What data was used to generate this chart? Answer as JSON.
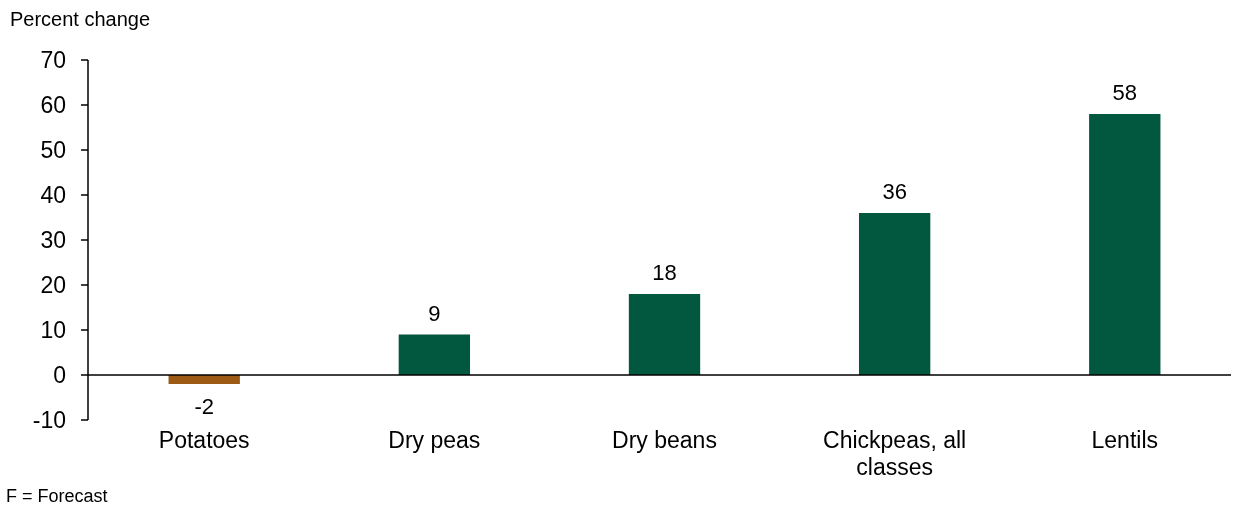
{
  "chart_data": {
    "type": "bar",
    "ylabel": "Percent change",
    "categories": [
      "Potatoes",
      "Dry peas",
      "Dry beans",
      "Chickpeas, all classes",
      "Lentils"
    ],
    "values": [
      -2,
      9,
      18,
      36,
      58
    ],
    "colors": [
      "#9c5a14",
      "#02573f",
      "#02573f",
      "#02573f",
      "#02573f"
    ],
    "ylim": [
      -10,
      70
    ],
    "yticks": [
      -10,
      0,
      10,
      20,
      30,
      40,
      50,
      60,
      70
    ],
    "data_labels": true,
    "grid": false,
    "annotations": [
      "F = Forecast"
    ]
  }
}
